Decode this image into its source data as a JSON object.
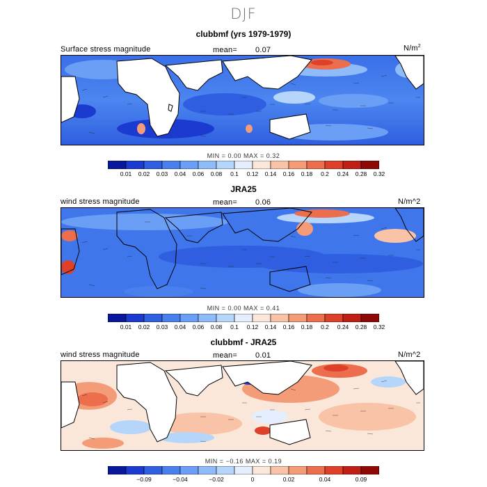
{
  "season": "DJF",
  "palette": [
    "#08179c",
    "#1a3ad0",
    "#2f5fe0",
    "#4a7fee",
    "#6b9ff5",
    "#8fbcf8",
    "#b6d5fa",
    "#e4eefc",
    "#fbe6da",
    "#f8c3a6",
    "#f49b78",
    "#ec6e4c",
    "#de4129",
    "#bf1f14",
    "#8e0906"
  ],
  "panels": [
    {
      "title": "clubbmf (yrs 1979-1979)",
      "left_label": "Surface stress magnitude",
      "mean_label": "mean=",
      "mean_value": "0.07",
      "units": "N/m",
      "units_sup": "2",
      "min_text": "MIN =",
      "min_value": "0.00",
      "max_text": "MAX =",
      "max_value": "0.32",
      "ticks": [
        "0.01",
        "0.02",
        "0.03",
        "0.04",
        "0.06",
        "0.08",
        "0.1",
        "0.12",
        "0.14",
        "0.16",
        "0.18",
        "0.2",
        "0.24",
        "0.28",
        "0.32"
      ]
    },
    {
      "title": "JRA25",
      "left_label": "wind stress magnitude",
      "mean_label": "mean=",
      "mean_value": "0.06",
      "units": "N/m^2",
      "min_text": "MIN =",
      "min_value": "0.00",
      "max_text": "MAX =",
      "max_value": "0.41",
      "ticks": [
        "0.01",
        "0.02",
        "0.03",
        "0.04",
        "0.06",
        "0.08",
        "0.1",
        "0.12",
        "0.14",
        "0.16",
        "0.18",
        "0.2",
        "0.24",
        "0.28",
        "0.32"
      ]
    },
    {
      "title": "clubbmf - JRA25",
      "left_label": "wind stress magnitude",
      "mean_label": "mean=",
      "mean_value": "0.01",
      "units": "N/m^2",
      "min_text": "MIN =",
      "min_value": "−0.16",
      "max_text": "MAX =",
      "max_value": "0.19",
      "ticks": [
        "−0.09",
        "−0.04",
        "−0.02",
        "0",
        "0.02",
        "0.04",
        "0.09"
      ]
    }
  ],
  "chart_data": [
    {
      "type": "heatmap",
      "title": "clubbmf (yrs 1979-1979)",
      "variable": "Surface stress magnitude",
      "units": "N/m^2",
      "mean": 0.07,
      "min": 0.0,
      "max": 0.32,
      "levels": [
        0.01,
        0.02,
        0.03,
        0.04,
        0.06,
        0.08,
        0.1,
        0.12,
        0.14,
        0.16,
        0.18,
        0.2,
        0.24,
        0.28,
        0.32
      ],
      "overlay": "wind stress vectors"
    },
    {
      "type": "heatmap",
      "title": "JRA25",
      "variable": "wind stress magnitude",
      "units": "N/m^2",
      "mean": 0.06,
      "min": 0.0,
      "max": 0.41,
      "levels": [
        0.01,
        0.02,
        0.03,
        0.04,
        0.06,
        0.08,
        0.1,
        0.12,
        0.14,
        0.16,
        0.18,
        0.2,
        0.24,
        0.28,
        0.32
      ],
      "overlay": "wind stress vectors"
    },
    {
      "type": "heatmap",
      "title": "clubbmf - JRA25",
      "variable": "wind stress magnitude",
      "units": "N/m^2",
      "mean": 0.01,
      "min": -0.16,
      "max": 0.19,
      "levels": [
        -0.09,
        -0.04,
        -0.02,
        0,
        0.02,
        0.04,
        0.09
      ],
      "overlay": "wind stress difference vectors"
    }
  ]
}
